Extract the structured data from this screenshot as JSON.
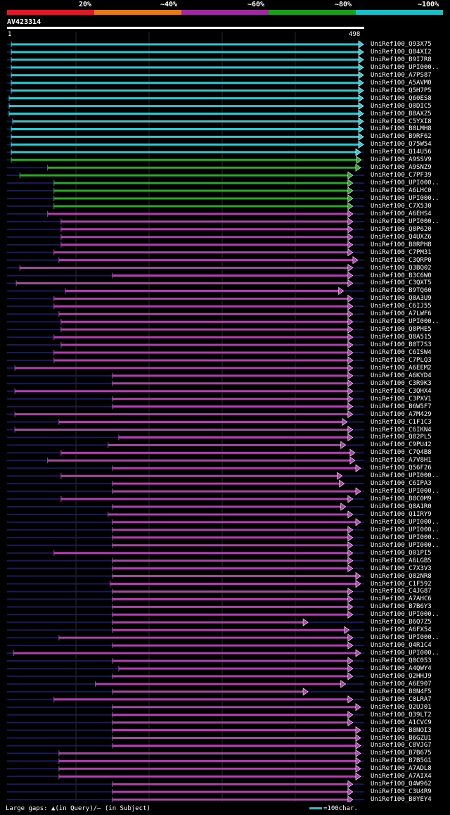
{
  "colors": {
    "background": "#000000",
    "segments": [
      "#e01828",
      "#e87818",
      "#a028a0",
      "#18a018",
      "#18c0c8"
    ],
    "cyan": "#2ec8d0",
    "green": "#2aa82a",
    "magenta": "#b040b0",
    "query": "#ffffff",
    "ghost": "#1a1a5a",
    "gap": "#ffff80"
  },
  "legend": {
    "labels": [
      "20%",
      "~40%",
      "~60%",
      "~80%",
      "~100%"
    ]
  },
  "query": {
    "title": "AV423314",
    "start": "1",
    "end": "498",
    "length": 498
  },
  "hits": [
    {
      "label": "UniRef100_Q93X75",
      "c": "cyan",
      "s": 4,
      "e": 498
    },
    {
      "label": "UniRef100_Q84XI2",
      "c": "cyan",
      "s": 4,
      "e": 498
    },
    {
      "label": "UniRef100_B9I7R8",
      "c": "cyan",
      "s": 4,
      "e": 498
    },
    {
      "label": "UniRef100_UPI000..",
      "c": "cyan",
      "s": 4,
      "e": 498
    },
    {
      "label": "UniRef100_A7PS87",
      "c": "cyan",
      "s": 4,
      "e": 498
    },
    {
      "label": "UniRef100_A5AVM0",
      "c": "cyan",
      "s": 4,
      "e": 498
    },
    {
      "label": "UniRef100_Q5H7P5",
      "c": "cyan",
      "s": 4,
      "e": 498
    },
    {
      "label": "UniRef100_Q60ES8",
      "c": "cyan",
      "s": 1,
      "e": 498
    },
    {
      "label": "UniRef100_Q0DIC5",
      "c": "cyan",
      "s": 1,
      "e": 498
    },
    {
      "label": "UniRef100_B8AXZ5",
      "c": "cyan",
      "s": 1,
      "e": 498
    },
    {
      "label": "UniRef100_C5YXI8",
      "c": "cyan",
      "s": 6,
      "e": 498
    },
    {
      "label": "UniRef100_B8LMH8",
      "c": "cyan",
      "s": 4,
      "e": 498
    },
    {
      "label": "UniRef100_B9RF62",
      "c": "cyan",
      "s": 4,
      "e": 498
    },
    {
      "label": "UniRef100_Q75W54",
      "c": "cyan",
      "s": 4,
      "e": 498
    },
    {
      "label": "UniRef100_Q14U56",
      "c": "cyan",
      "s": 4,
      "e": 494
    },
    {
      "label": "UniRef100_A9SSV9",
      "c": "green",
      "s": 4,
      "e": 495
    },
    {
      "label": "UniRef100_A9SNZ9",
      "c": "green",
      "s": 55,
      "e": 494
    },
    {
      "label": "UniRef100_C7PF39",
      "c": "green",
      "s": 16,
      "e": 483
    },
    {
      "label": "UniRef100_UPI000..",
      "c": "green",
      "s": 64,
      "e": 483
    },
    {
      "label": "UniRef100_A6LHC0",
      "c": "green",
      "s": 64,
      "e": 483
    },
    {
      "label": "UniRef100_UPI000..",
      "c": "green",
      "s": 64,
      "e": 483
    },
    {
      "label": "UniRef100_C7X530",
      "c": "green",
      "s": 64,
      "e": 483
    },
    {
      "label": "UniRef100_A6EHS4",
      "c": "magenta",
      "s": 55,
      "e": 483
    },
    {
      "label": "UniRef100_UPI000..",
      "c": "magenta",
      "s": 74,
      "e": 483
    },
    {
      "label": "UniRef100_Q8P620",
      "c": "magenta",
      "s": 74,
      "e": 483
    },
    {
      "label": "UniRef100_Q4UXZ6",
      "c": "magenta",
      "s": 74,
      "e": 483
    },
    {
      "label": "UniRef100_B0RPH8",
      "c": "magenta",
      "s": 74,
      "e": 483
    },
    {
      "label": "UniRef100_C7PM31",
      "c": "magenta",
      "s": 64,
      "e": 483
    },
    {
      "label": "UniRef100_C3QRP0",
      "c": "magenta",
      "s": 71,
      "e": 490
    },
    {
      "label": "UniRef100_Q3BQ02",
      "c": "magenta",
      "s": 16,
      "e": 483
    },
    {
      "label": "UniRef100_B3C6W0",
      "c": "magenta",
      "s": 146,
      "e": 483
    },
    {
      "label": "UniRef100_C3QXT5",
      "c": "magenta",
      "s": 11,
      "e": 483
    },
    {
      "label": "UniRef100_B9TQ60",
      "c": "magenta",
      "s": 80,
      "e": 470
    },
    {
      "label": "UniRef100_Q8A3U9",
      "c": "magenta",
      "s": 64,
      "e": 483
    },
    {
      "label": "UniRef100_C6IJ55",
      "c": "magenta",
      "s": 64,
      "e": 483
    },
    {
      "label": "UniRef100_A7LWF6",
      "c": "magenta",
      "s": 71,
      "e": 483
    },
    {
      "label": "UniRef100_UPI000..",
      "c": "magenta",
      "s": 74,
      "e": 483
    },
    {
      "label": "UniRef100_Q8PHE5",
      "c": "magenta",
      "s": 74,
      "e": 483
    },
    {
      "label": "UniRef100_Q8A515",
      "c": "magenta",
      "s": 64,
      "e": 483
    },
    {
      "label": "UniRef100_B0T7S3",
      "c": "magenta",
      "s": 74,
      "e": 483
    },
    {
      "label": "UniRef100_C6ISW4",
      "c": "magenta",
      "s": 64,
      "e": 483
    },
    {
      "label": "UniRef100_C7PLQ3",
      "c": "magenta",
      "s": 64,
      "e": 483
    },
    {
      "label": "UniRef100_A6EEM2",
      "c": "magenta",
      "s": 9,
      "e": 483
    },
    {
      "label": "UniRef100_A6KYD4",
      "c": "magenta",
      "s": 146,
      "e": 483
    },
    {
      "label": "UniRef100_C3R9K3",
      "c": "magenta",
      "s": 146,
      "e": 483
    },
    {
      "label": "UniRef100_C3QHX4",
      "c": "magenta",
      "s": 9,
      "e": 483
    },
    {
      "label": "UniRef100_C3PXV1",
      "c": "magenta",
      "s": 146,
      "e": 483
    },
    {
      "label": "UniRef100_B6W5F7",
      "c": "magenta",
      "s": 146,
      "e": 483
    },
    {
      "label": "UniRef100_A7M429",
      "c": "magenta",
      "s": 9,
      "e": 483
    },
    {
      "label": "UniRef100_C1F1C3",
      "c": "magenta",
      "s": 71,
      "e": 475
    },
    {
      "label": "UniRef100_C6IKN4",
      "c": "magenta",
      "s": 9,
      "e": 483
    },
    {
      "label": "UniRef100_Q82PL5",
      "c": "magenta",
      "s": 155,
      "e": 483
    },
    {
      "label": "UniRef100_C9PU42",
      "c": "magenta",
      "s": 140,
      "e": 473
    },
    {
      "label": "UniRef100_C7Q4B8",
      "c": "magenta",
      "s": 74,
      "e": 486
    },
    {
      "label": "UniRef100_A7V8H1",
      "c": "magenta",
      "s": 55,
      "e": 486
    },
    {
      "label": "UniRef100_Q56F26",
      "c": "magenta",
      "s": 146,
      "e": 494
    },
    {
      "label": "UniRef100_UPI000..",
      "c": "magenta",
      "s": 74,
      "e": 468
    },
    {
      "label": "UniRef100_C6IPA3",
      "c": "magenta",
      "s": 146,
      "e": 471
    },
    {
      "label": "UniRef100_UPI000..",
      "c": "magenta",
      "s": 146,
      "e": 494
    },
    {
      "label": "UniRef100_B8C0M9",
      "c": "magenta",
      "s": 74,
      "e": 483
    },
    {
      "label": "UniRef100_Q8A1R0",
      "c": "magenta",
      "s": 146,
      "e": 473
    },
    {
      "label": "UniRef100_Q1IRY9",
      "c": "magenta",
      "s": 140,
      "e": 483
    },
    {
      "label": "UniRef100_UPI000..",
      "c": "magenta",
      "s": 146,
      "e": 494
    },
    {
      "label": "UniRef100_UPI000..",
      "c": "magenta",
      "s": 146,
      "e": 483
    },
    {
      "label": "UniRef100_UPI000..",
      "c": "magenta",
      "s": 146,
      "e": 483
    },
    {
      "label": "UniRef100_UPI000..",
      "c": "magenta",
      "s": 146,
      "e": 483
    },
    {
      "label": "UniRef100_Q01PI5",
      "c": "magenta",
      "s": 64,
      "e": 483
    },
    {
      "label": "UniRef100_A6LGB5",
      "c": "magenta",
      "s": 146,
      "e": 483
    },
    {
      "label": "UniRef100_C7X3V3",
      "c": "magenta",
      "s": 146,
      "e": 483
    },
    {
      "label": "UniRef100_Q82NR8",
      "c": "magenta",
      "s": 146,
      "e": 494
    },
    {
      "label": "UniRef100_C1F592",
      "c": "magenta",
      "s": 143,
      "e": 494
    },
    {
      "label": "UniRef100_C4JG87",
      "c": "magenta",
      "s": 146,
      "e": 483
    },
    {
      "label": "UniRef100_A7AHC6",
      "c": "magenta",
      "s": 146,
      "e": 483
    },
    {
      "label": "UniRef100_B7B6Y3",
      "c": "magenta",
      "s": 146,
      "e": 483
    },
    {
      "label": "UniRef100_UPI000..",
      "c": "magenta",
      "s": 146,
      "e": 483
    },
    {
      "label": "UniRef100_B6Q7Z5",
      "c": "magenta",
      "s": 146,
      "e": 420
    },
    {
      "label": "UniRef100_A6FX54",
      "c": "magenta",
      "s": 146,
      "e": 478
    },
    {
      "label": "UniRef100_UPI000..",
      "c": "magenta",
      "s": 71,
      "e": 483
    },
    {
      "label": "UniRef100_Q4R1C4",
      "c": "magenta",
      "s": 146,
      "e": 483
    },
    {
      "label": "UniRef100_UPI000..",
      "c": "magenta",
      "s": 7,
      "e": 494
    },
    {
      "label": "UniRef100_Q0C053",
      "c": "magenta",
      "s": 146,
      "e": 483
    },
    {
      "label": "UniRef100_A4QWY4",
      "c": "magenta",
      "s": 155,
      "e": 483
    },
    {
      "label": "UniRef100_Q2HHJ9",
      "c": "magenta",
      "s": 146,
      "e": 483
    },
    {
      "label": "UniRef100_A6E907",
      "c": "magenta",
      "s": 122,
      "e": 473
    },
    {
      "label": "UniRef100_B8N4F5",
      "c": "magenta",
      "s": 146,
      "e": 420
    },
    {
      "label": "UniRef100_C0LRA7",
      "c": "magenta",
      "s": 64,
      "e": 483
    },
    {
      "label": "UniRef100_Q2UJ01",
      "c": "magenta",
      "s": 146,
      "e": 494
    },
    {
      "label": "UniRef100_Q39LT2",
      "c": "magenta",
      "s": 146,
      "e": 483
    },
    {
      "label": "UniRef100_A1CVC9",
      "c": "magenta",
      "s": 146,
      "e": 483
    },
    {
      "label": "UniRef100_B8NOI3",
      "c": "magenta",
      "s": 146,
      "e": 494
    },
    {
      "label": "UniRef100_B6GZU1",
      "c": "magenta",
      "s": 146,
      "e": 494
    },
    {
      "label": "UniRef100_C8VJG7",
      "c": "magenta",
      "s": 146,
      "e": 494
    },
    {
      "label": "UniRef100_B7B675",
      "c": "magenta",
      "s": 71,
      "e": 494
    },
    {
      "label": "UniRef100_B7B5G1",
      "c": "magenta",
      "s": 71,
      "e": 494
    },
    {
      "label": "UniRef100_A7ADL8",
      "c": "magenta",
      "s": 71,
      "e": 494
    },
    {
      "label": "UniRef100_A7AIX4",
      "c": "magenta",
      "s": 71,
      "e": 494
    },
    {
      "label": "UniRef100_Q4W962",
      "c": "magenta",
      "s": 146,
      "e": 483
    },
    {
      "label": "UniRef100_C3U4R9",
      "c": "magenta",
      "s": 146,
      "e": 483
    },
    {
      "label": "UniRef100_B0YEY4",
      "c": "magenta",
      "s": 146,
      "e": 483
    }
  ],
  "footer": {
    "gaps_text": "Large gaps: ▲(in Query)/– (in Subject)",
    "scale_text": "=100char."
  }
}
